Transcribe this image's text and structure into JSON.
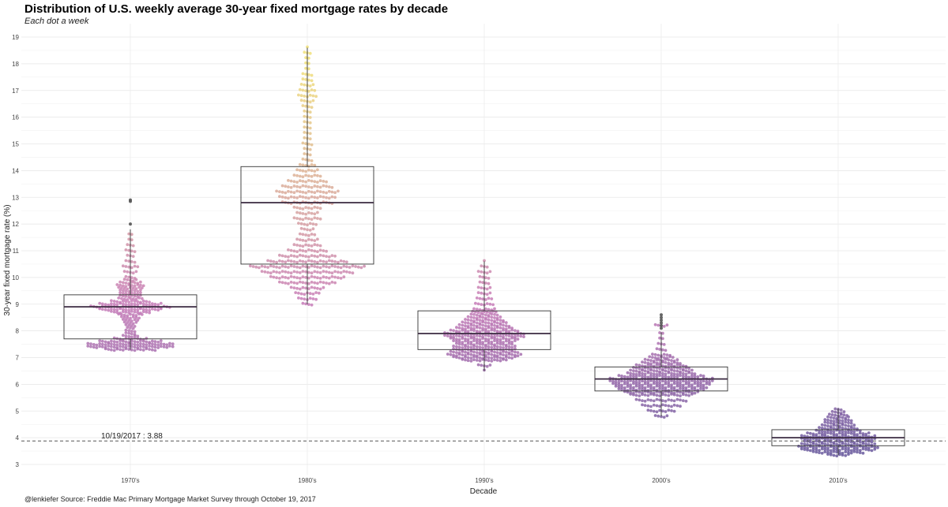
{
  "chart_data": {
    "type": "scatter",
    "subtype": "beeswarm-with-boxplot",
    "title": "Distribution of U.S. weekly average 30-year fixed mortgage rates by decade",
    "subtitle": "Each dot a week",
    "xlabel": "Decade",
    "ylabel": "30-year fixed mortgage rate (%)",
    "caption": "@lenkiefer Source: Freddie Mac Primary Mortgage Market Survey through October 19, 2017",
    "categories": [
      "1970's",
      "1980's",
      "1990's",
      "2000's",
      "2010's"
    ],
    "yticks": [
      3,
      4,
      5,
      6,
      7,
      8,
      9,
      10,
      11,
      12,
      13,
      14,
      15,
      16,
      17,
      18,
      19
    ],
    "ylim": [
      2.6,
      19.5
    ],
    "grid": true,
    "legend": "none",
    "colors": {
      "low": "#6a5a9e",
      "mid": "#c77cb8",
      "high": "#f0e07a",
      "box": "#333333",
      "reference": "#555555"
    },
    "reference_line": {
      "value": 3.88,
      "label": "10/19/2017 :  3.88"
    },
    "boxplots": [
      {
        "category": "1970's",
        "q1": 7.7,
        "median": 8.9,
        "q3": 9.35,
        "whisker_low": 7.3,
        "whisker_high": 11.8,
        "outliers": [
          12.0,
          12.85,
          12.9
        ]
      },
      {
        "category": "1980's",
        "q1": 10.5,
        "median": 12.8,
        "q3": 14.15,
        "whisker_low": 9.0,
        "whisker_high": 18.6,
        "outliers": []
      },
      {
        "category": "1990's",
        "q1": 7.3,
        "median": 7.9,
        "q3": 8.75,
        "whisker_low": 6.5,
        "whisker_high": 10.6,
        "outliers": []
      },
      {
        "category": "2000's",
        "q1": 5.75,
        "median": 6.2,
        "q3": 6.65,
        "whisker_low": 4.8,
        "whisker_high": 7.95,
        "outliers": [
          8.1,
          8.2,
          8.3,
          8.4,
          8.5,
          8.6
        ]
      },
      {
        "category": "2010's",
        "q1": 3.7,
        "median": 4.0,
        "q3": 4.3,
        "whisker_low": 3.35,
        "whisker_high": 5.1,
        "outliers": []
      }
    ],
    "distribution": [
      {
        "category": "1970's",
        "levels": [
          [
            7.3,
            18
          ],
          [
            7.4,
            30
          ],
          [
            7.5,
            30
          ],
          [
            7.6,
            22
          ],
          [
            7.7,
            12
          ],
          [
            7.8,
            6
          ],
          [
            7.9,
            4
          ],
          [
            8.0,
            4
          ],
          [
            8.1,
            3
          ],
          [
            8.2,
            4
          ],
          [
            8.3,
            5
          ],
          [
            8.4,
            6
          ],
          [
            8.5,
            7
          ],
          [
            8.6,
            9
          ],
          [
            8.7,
            14
          ],
          [
            8.8,
            22
          ],
          [
            8.9,
            28
          ],
          [
            9.0,
            22
          ],
          [
            9.1,
            14
          ],
          [
            9.2,
            9
          ],
          [
            9.3,
            8
          ],
          [
            9.4,
            8
          ],
          [
            9.5,
            8
          ],
          [
            9.6,
            9
          ],
          [
            9.7,
            10
          ],
          [
            9.8,
            8
          ],
          [
            9.9,
            5
          ],
          [
            10.0,
            4
          ],
          [
            10.2,
            5
          ],
          [
            10.4,
            6
          ],
          [
            10.6,
            4
          ],
          [
            10.8,
            3
          ],
          [
            11.0,
            4
          ],
          [
            11.2,
            3
          ],
          [
            11.4,
            2
          ],
          [
            11.6,
            2
          ]
        ]
      },
      {
        "category": "1980's",
        "levels": [
          [
            9.0,
            4
          ],
          [
            9.2,
            7
          ],
          [
            9.4,
            9
          ],
          [
            9.6,
            12
          ],
          [
            9.8,
            20
          ],
          [
            10.0,
            26
          ],
          [
            10.2,
            32
          ],
          [
            10.4,
            40
          ],
          [
            10.6,
            28
          ],
          [
            10.8,
            20
          ],
          [
            11.0,
            14
          ],
          [
            11.2,
            10
          ],
          [
            11.4,
            8
          ],
          [
            11.6,
            6
          ],
          [
            11.8,
            5
          ],
          [
            12.0,
            7
          ],
          [
            12.2,
            10
          ],
          [
            12.4,
            8
          ],
          [
            12.6,
            10
          ],
          [
            12.8,
            18
          ],
          [
            13.0,
            20
          ],
          [
            13.2,
            22
          ],
          [
            13.4,
            18
          ],
          [
            13.6,
            14
          ],
          [
            13.8,
            10
          ],
          [
            14.0,
            8
          ],
          [
            14.2,
            6
          ],
          [
            14.4,
            4
          ],
          [
            14.6,
            3
          ],
          [
            14.8,
            3
          ],
          [
            15.0,
            4
          ],
          [
            15.2,
            3
          ],
          [
            15.4,
            3
          ],
          [
            15.6,
            3
          ],
          [
            15.8,
            3
          ],
          [
            16.0,
            3
          ],
          [
            16.2,
            3
          ],
          [
            16.4,
            4
          ],
          [
            16.6,
            5
          ],
          [
            16.8,
            7
          ],
          [
            17.0,
            6
          ],
          [
            17.2,
            5
          ],
          [
            17.4,
            4
          ],
          [
            17.6,
            4
          ],
          [
            17.8,
            2
          ],
          [
            18.0,
            2
          ],
          [
            18.2,
            2
          ],
          [
            18.4,
            3
          ],
          [
            18.6,
            1
          ]
        ]
      },
      {
        "category": "1990's",
        "levels": [
          [
            6.5,
            1
          ],
          [
            6.7,
            5
          ],
          [
            6.9,
            16
          ],
          [
            7.0,
            22
          ],
          [
            7.1,
            26
          ],
          [
            7.2,
            24
          ],
          [
            7.3,
            22
          ],
          [
            7.4,
            22
          ],
          [
            7.5,
            20
          ],
          [
            7.6,
            22
          ],
          [
            7.7,
            24
          ],
          [
            7.8,
            28
          ],
          [
            7.9,
            28
          ],
          [
            8.0,
            24
          ],
          [
            8.1,
            20
          ],
          [
            8.2,
            18
          ],
          [
            8.3,
            16
          ],
          [
            8.4,
            14
          ],
          [
            8.5,
            12
          ],
          [
            8.6,
            10
          ],
          [
            8.7,
            9
          ],
          [
            8.8,
            8
          ],
          [
            9.0,
            7
          ],
          [
            9.2,
            6
          ],
          [
            9.4,
            5
          ],
          [
            9.6,
            5
          ],
          [
            9.8,
            4
          ],
          [
            10.0,
            4
          ],
          [
            10.2,
            5
          ],
          [
            10.4,
            3
          ],
          [
            10.6,
            1
          ]
        ]
      },
      {
        "category": "2000's",
        "levels": [
          [
            4.8,
            5
          ],
          [
            5.0,
            10
          ],
          [
            5.2,
            14
          ],
          [
            5.4,
            18
          ],
          [
            5.6,
            22
          ],
          [
            5.7,
            26
          ],
          [
            5.8,
            30
          ],
          [
            5.9,
            32
          ],
          [
            6.0,
            34
          ],
          [
            6.1,
            36
          ],
          [
            6.2,
            36
          ],
          [
            6.3,
            30
          ],
          [
            6.4,
            24
          ],
          [
            6.5,
            22
          ],
          [
            6.6,
            20
          ],
          [
            6.7,
            18
          ],
          [
            6.8,
            14
          ],
          [
            6.9,
            12
          ],
          [
            7.0,
            9
          ],
          [
            7.1,
            7
          ],
          [
            7.3,
            4
          ],
          [
            7.5,
            3
          ],
          [
            7.7,
            2
          ],
          [
            7.9,
            2
          ],
          [
            8.2,
            5
          ]
        ]
      },
      {
        "category": "2010's",
        "levels": [
          [
            3.35,
            8
          ],
          [
            3.45,
            18
          ],
          [
            3.55,
            26
          ],
          [
            3.65,
            28
          ],
          [
            3.75,
            26
          ],
          [
            3.85,
            24
          ],
          [
            3.95,
            26
          ],
          [
            4.05,
            26
          ],
          [
            4.15,
            22
          ],
          [
            4.25,
            16
          ],
          [
            4.35,
            14
          ],
          [
            4.45,
            12
          ],
          [
            4.55,
            10
          ],
          [
            4.65,
            10
          ],
          [
            4.75,
            8
          ],
          [
            4.85,
            7
          ],
          [
            4.95,
            5
          ],
          [
            5.05,
            3
          ]
        ]
      }
    ]
  }
}
